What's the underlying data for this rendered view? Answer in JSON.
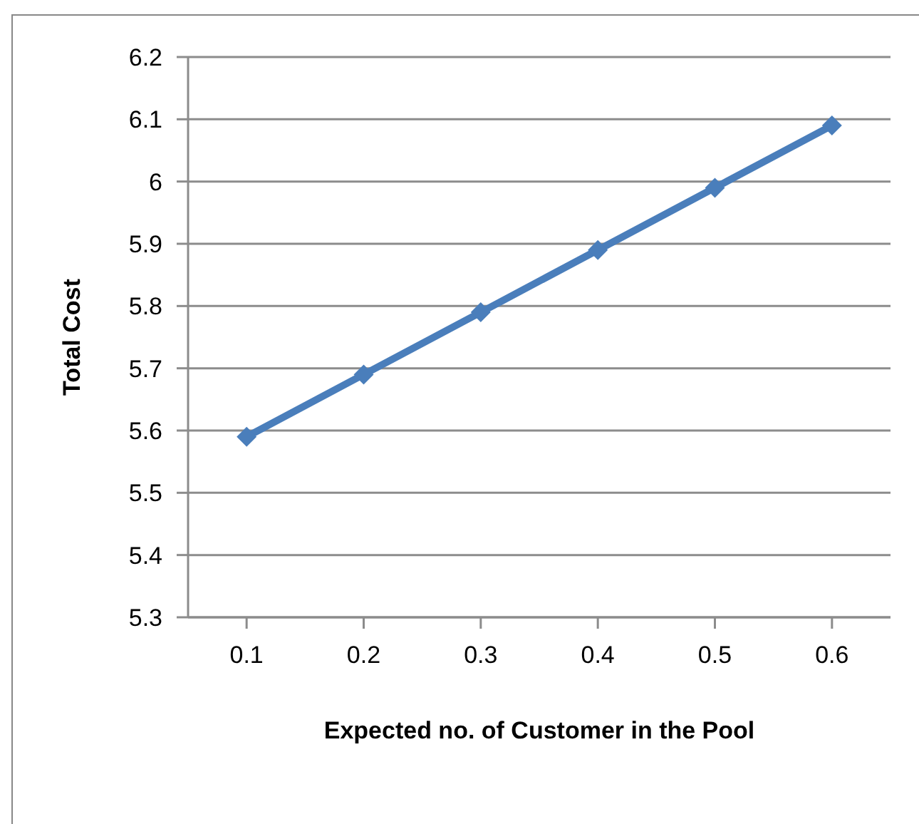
{
  "chart_data": {
    "type": "line",
    "xlabel": "Expected no. of Customer in the Pool",
    "ylabel": "Total Cost",
    "categories": [
      "0.1",
      "0.2",
      "0.3",
      "0.4",
      "0.5",
      "0.6"
    ],
    "series": [
      {
        "color": "#4a7ebb",
        "values": [
          5.59,
          5.69,
          5.79,
          5.89,
          5.99,
          6.09
        ]
      }
    ],
    "ylim": [
      5.3,
      6.2
    ],
    "yticks": [
      5.3,
      5.4,
      5.5,
      5.6,
      5.7,
      5.8,
      5.9,
      6,
      6.1,
      6.2
    ],
    "grid": "y",
    "marker": "diamond",
    "legend": false
  }
}
